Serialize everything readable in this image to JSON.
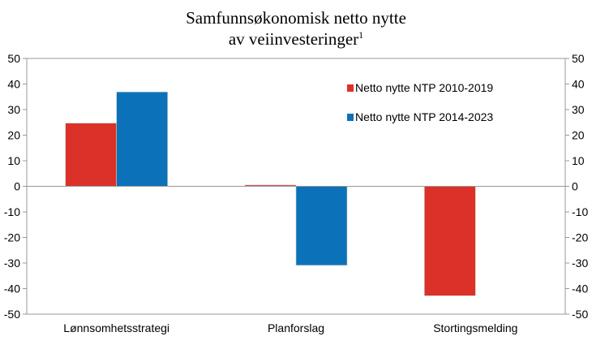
{
  "chart_data": {
    "type": "bar",
    "title_line1": "Samfunnsøkonomisk netto nytte",
    "title_line2": "av veiinvesteringer",
    "title_footnote": "1",
    "categories": [
      "Lønnsomhetsstrategi",
      "Planforslag",
      "Stortingsmelding"
    ],
    "series": [
      {
        "name": "Netto nytte NTP 2010-2019",
        "color": "#dc3128",
        "values": [
          24.7,
          0.5,
          -42.8
        ]
      },
      {
        "name": "Netto nytte NTP 2014-2023",
        "color": "#0b72b9",
        "values": [
          36.9,
          -30.9,
          null
        ]
      }
    ],
    "ylim": [
      -50,
      50
    ],
    "yticks": [
      "50",
      "40",
      "30",
      "20",
      "10",
      "0",
      "-10",
      "-20",
      "-30",
      "-40",
      "-50"
    ],
    "ytick_values": [
      50,
      40,
      30,
      20,
      10,
      0,
      -10,
      -20,
      -30,
      -40,
      -50
    ],
    "dual_axis_mirrored": true,
    "grid": false,
    "legend_position": "top-right"
  }
}
